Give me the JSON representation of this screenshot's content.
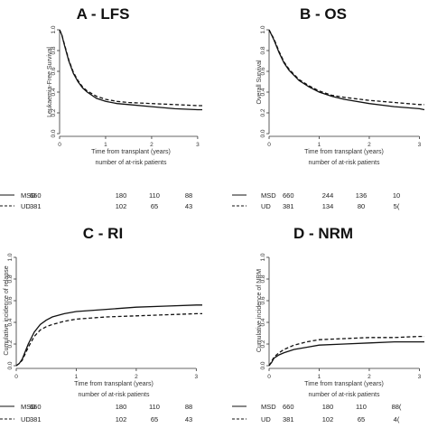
{
  "chart_data": [
    {
      "type": "line",
      "title": "A - LFS",
      "ylabel": "Leukaemia-Free Survival",
      "xlabel": "Time from transplant (years)",
      "risk_caption": "number of at-risk patients",
      "xlim": [
        0,
        3.1
      ],
      "ylim": [
        0,
        1.0
      ],
      "xticks": [
        0,
        1,
        2,
        3
      ],
      "yticks": [
        0.0,
        0.2,
        0.4,
        0.6,
        0.8,
        1.0
      ],
      "series": [
        {
          "name": "MSD",
          "dash": "solid",
          "x": [
            0,
            0.05,
            0.1,
            0.2,
            0.3,
            0.4,
            0.5,
            0.6,
            0.8,
            1.0,
            1.25,
            1.5,
            2.0,
            2.5,
            3.0,
            3.1
          ],
          "y": [
            1.0,
            0.95,
            0.86,
            0.7,
            0.58,
            0.5,
            0.44,
            0.4,
            0.34,
            0.31,
            0.29,
            0.28,
            0.26,
            0.24,
            0.23,
            0.23
          ]
        },
        {
          "name": "UD",
          "dash": "dashed",
          "x": [
            0,
            0.05,
            0.1,
            0.2,
            0.3,
            0.4,
            0.5,
            0.6,
            0.8,
            1.0,
            1.25,
            1.5,
            2.0,
            2.5,
            3.0,
            3.1
          ],
          "y": [
            1.0,
            0.95,
            0.87,
            0.71,
            0.59,
            0.51,
            0.45,
            0.41,
            0.36,
            0.33,
            0.31,
            0.3,
            0.29,
            0.28,
            0.27,
            0.27
          ]
        }
      ],
      "risk_table": [
        {
          "name": "MSD",
          "counts": [
            "660",
            "180",
            "110",
            "88"
          ]
        },
        {
          "name": "UD",
          "counts": [
            "381",
            "102",
            "65",
            "43"
          ]
        }
      ]
    },
    {
      "type": "line",
      "title": "B - OS",
      "ylabel": "Overall Survival",
      "xlabel": "Time from transplant (years)",
      "risk_caption": "number of at-risk patients",
      "xlim": [
        0,
        3.1
      ],
      "ylim": [
        0,
        1.0
      ],
      "xticks": [
        0,
        1,
        2,
        3
      ],
      "yticks": [
        0.0,
        0.2,
        0.4,
        0.6,
        0.8,
        1.0
      ],
      "series": [
        {
          "name": "MSD",
          "dash": "solid",
          "x": [
            0,
            0.1,
            0.2,
            0.3,
            0.4,
            0.5,
            0.6,
            0.8,
            1.0,
            1.25,
            1.5,
            2.0,
            2.5,
            3.0,
            3.1
          ],
          "y": [
            1.0,
            0.9,
            0.78,
            0.68,
            0.61,
            0.56,
            0.51,
            0.45,
            0.4,
            0.36,
            0.33,
            0.29,
            0.26,
            0.24,
            0.23
          ]
        },
        {
          "name": "UD",
          "dash": "dashed",
          "x": [
            0,
            0.1,
            0.2,
            0.3,
            0.4,
            0.5,
            0.6,
            0.8,
            1.0,
            1.25,
            1.5,
            2.0,
            2.5,
            3.0,
            3.1
          ],
          "y": [
            1.0,
            0.91,
            0.79,
            0.69,
            0.62,
            0.57,
            0.52,
            0.46,
            0.41,
            0.37,
            0.35,
            0.32,
            0.3,
            0.28,
            0.28
          ]
        }
      ],
      "risk_table": [
        {
          "name": "MSD",
          "counts": [
            "660",
            "244",
            "136",
            "10"
          ]
        },
        {
          "name": "UD",
          "counts": [
            "381",
            "134",
            "80",
            "5("
          ]
        }
      ]
    },
    {
      "type": "line",
      "title": "C - RI",
      "ylabel": "Cumulative incidence of relapse",
      "xlabel": "Time from transplant (years)",
      "risk_caption": "number of at-risk patients",
      "xlim": [
        0,
        3.1
      ],
      "ylim": [
        0,
        1.0
      ],
      "xticks": [
        0,
        1,
        2,
        3
      ],
      "yticks": [
        0.0,
        0.2,
        0.4,
        0.6,
        0.8,
        1.0
      ],
      "series": [
        {
          "name": "MSD",
          "dash": "solid",
          "x": [
            0,
            0.05,
            0.1,
            0.2,
            0.3,
            0.4,
            0.5,
            0.6,
            0.8,
            1.0,
            1.5,
            2.0,
            2.5,
            3.0,
            3.1
          ],
          "y": [
            0,
            0.02,
            0.06,
            0.2,
            0.31,
            0.38,
            0.42,
            0.45,
            0.48,
            0.5,
            0.52,
            0.54,
            0.55,
            0.56,
            0.56
          ]
        },
        {
          "name": "UD",
          "dash": "dashed",
          "x": [
            0,
            0.05,
            0.1,
            0.2,
            0.3,
            0.4,
            0.5,
            0.6,
            0.8,
            1.0,
            1.5,
            2.0,
            2.5,
            3.0,
            3.1
          ],
          "y": [
            0,
            0.02,
            0.05,
            0.17,
            0.27,
            0.33,
            0.36,
            0.38,
            0.41,
            0.43,
            0.45,
            0.46,
            0.47,
            0.48,
            0.48
          ]
        }
      ],
      "risk_table": [
        {
          "name": "MSD",
          "counts": [
            "660",
            "180",
            "110",
            "88"
          ]
        },
        {
          "name": "UD",
          "counts": [
            "381",
            "102",
            "65",
            "43"
          ]
        }
      ]
    },
    {
      "type": "line",
      "title": "D - NRM",
      "ylabel": "Cumulative incidence of NRM",
      "xlabel": "Time from transplant (years)",
      "risk_caption": "number of at-risk patients",
      "xlim": [
        0,
        3.1
      ],
      "ylim": [
        0,
        1.0
      ],
      "xticks": [
        0,
        1,
        2,
        3
      ],
      "yticks": [
        0.0,
        0.2,
        0.4,
        0.6,
        0.8,
        1.0
      ],
      "series": [
        {
          "name": "MSD",
          "dash": "solid",
          "x": [
            0,
            0.05,
            0.1,
            0.2,
            0.3,
            0.5,
            0.75,
            1.0,
            1.5,
            2.0,
            2.5,
            3.0,
            3.1
          ],
          "y": [
            0,
            0.03,
            0.07,
            0.1,
            0.12,
            0.15,
            0.17,
            0.19,
            0.2,
            0.21,
            0.22,
            0.22,
            0.22
          ]
        },
        {
          "name": "UD",
          "dash": "dashed",
          "x": [
            0,
            0.05,
            0.1,
            0.2,
            0.3,
            0.5,
            0.75,
            1.0,
            1.5,
            2.0,
            2.5,
            3.0,
            3.1
          ],
          "y": [
            0,
            0.04,
            0.08,
            0.12,
            0.15,
            0.19,
            0.22,
            0.24,
            0.25,
            0.26,
            0.26,
            0.27,
            0.27
          ]
        }
      ],
      "risk_table": [
        {
          "name": "MSD",
          "counts": [
            "660",
            "180",
            "110",
            "88("
          ]
        },
        {
          "name": "UD",
          "counts": [
            "381",
            "102",
            "65",
            "4("
          ]
        }
      ]
    }
  ]
}
